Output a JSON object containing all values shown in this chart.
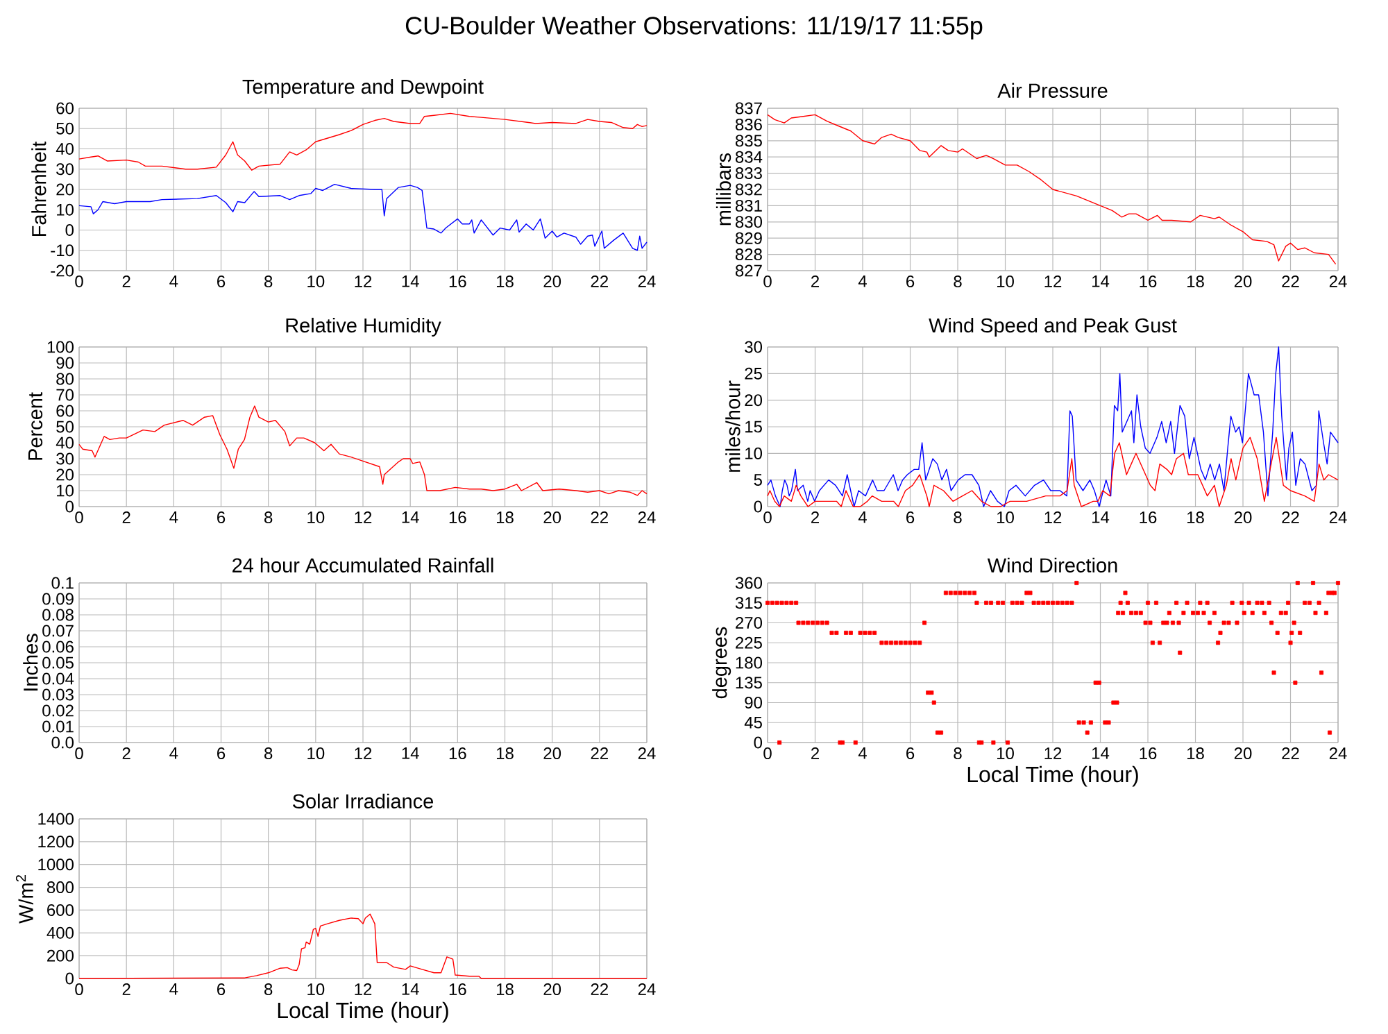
{
  "chart_data": [
    {
      "type": "other",
      "title": "CU-Boulder Weather Observations: 11/19/17 11:55p"
    },
    {
      "type": "line",
      "title": "Temperature and Dewpoint",
      "ylabel": "Fahrenheit",
      "xlim": [
        0,
        24
      ],
      "ylim": [
        -20,
        60
      ],
      "xticks": [
        0,
        2,
        4,
        6,
        8,
        10,
        12,
        14,
        16,
        18,
        20,
        22,
        24
      ],
      "yticks": [
        -20,
        -10,
        0,
        10,
        20,
        30,
        40,
        50,
        60
      ],
      "grid": true,
      "series": [
        {
          "color": "#ff0000",
          "x": [
            0,
            0.5,
            0.8,
            1.2,
            2,
            2.5,
            2.8,
            3.5,
            4.5,
            5,
            5.8,
            6.2,
            6.5,
            6.7,
            7,
            7.3,
            7.6,
            8.5,
            8.9,
            9.2,
            9.6,
            10,
            11,
            11.5,
            12,
            12.5,
            12.9,
            13.3,
            14,
            14.4,
            14.6,
            15,
            15.7,
            16.5,
            17,
            18,
            19,
            19.3,
            20,
            21,
            21.5,
            22,
            22.5,
            23,
            23.4,
            23.6,
            23.8,
            24
          ],
          "values": [
            35,
            36,
            36.5,
            34,
            34.5,
            33.5,
            31.5,
            31.5,
            30,
            30,
            31,
            37,
            43.5,
            37,
            34,
            29.5,
            31.5,
            32.5,
            38.5,
            37,
            39.5,
            43.5,
            47,
            49,
            52,
            54,
            55,
            53.5,
            52.5,
            52.5,
            56,
            56.5,
            57.5,
            56,
            55.5,
            54.5,
            53,
            52.5,
            53,
            52.5,
            54.5,
            53.5,
            53,
            50.5,
            50,
            52,
            51,
            51.5
          ]
        },
        {
          "color": "#0000ff",
          "x": [
            0,
            0.5,
            0.6,
            0.8,
            1,
            1.5,
            2,
            3,
            3.5,
            5,
            5.8,
            6.2,
            6.5,
            6.7,
            7,
            7.4,
            7.6,
            8.5,
            8.9,
            9.3,
            9.8,
            10,
            10.3,
            10.8,
            11.5,
            12.5,
            12.8,
            12.9,
            13,
            13.5,
            14,
            14.3,
            14.5,
            14.7,
            15,
            15.3,
            15.5,
            16,
            16.2,
            16.5,
            16.6,
            16.7,
            17,
            17.5,
            17.8,
            18.2,
            18.5,
            18.6,
            18.9,
            19.2,
            19.5,
            19.7,
            20,
            20.2,
            20.5,
            21,
            21.2,
            21.5,
            21.7,
            21.8,
            22.1,
            22.2,
            22.6,
            23,
            23.4,
            23.6,
            23.7,
            23.8,
            24
          ],
          "values": [
            12,
            11.5,
            8,
            10,
            14,
            13,
            14,
            14,
            15,
            15.5,
            17,
            13.5,
            9,
            14,
            13.5,
            19,
            16.5,
            17,
            15,
            17,
            18,
            20.5,
            19.5,
            22.5,
            20.5,
            20,
            20,
            7,
            15.5,
            21,
            22,
            21,
            19.5,
            1,
            0.5,
            -1.5,
            1,
            5.5,
            3,
            3,
            5,
            -1.5,
            5,
            -2.5,
            1,
            0,
            5,
            -1,
            3,
            0,
            5.5,
            -4,
            -0.5,
            -3.5,
            -1.5,
            -3.5,
            -7,
            -3,
            -2.5,
            -8,
            -0.5,
            -9,
            -5,
            -1.5,
            -9,
            -10,
            -3,
            -9,
            -6
          ]
        }
      ]
    },
    {
      "type": "line",
      "title": "Air Pressure",
      "ylabel": "millibars",
      "xlim": [
        0,
        24
      ],
      "ylim": [
        827,
        837
      ],
      "xticks": [
        0,
        2,
        4,
        6,
        8,
        10,
        12,
        14,
        16,
        18,
        20,
        22,
        24
      ],
      "yticks": [
        827,
        828,
        829,
        830,
        831,
        832,
        833,
        834,
        835,
        836,
        837
      ],
      "grid": true,
      "color": "#ff0000",
      "x": [
        0,
        0.3,
        0.7,
        1,
        1.5,
        2,
        2.5,
        3,
        3.5,
        4,
        4.5,
        4.8,
        5.2,
        5.5,
        6,
        6.4,
        6.7,
        6.8,
        7.3,
        7.6,
        8,
        8.2,
        8.5,
        8.8,
        9.2,
        9.5,
        10,
        10.5,
        11,
        11.5,
        12,
        12.5,
        13,
        13.5,
        14,
        14.5,
        14.9,
        15.2,
        15.5,
        16,
        16.4,
        16.6,
        17,
        17.8,
        18.2,
        18.8,
        19,
        19.5,
        20,
        20.4,
        21,
        21.3,
        21.5,
        21.8,
        22,
        22.3,
        22.6,
        23,
        23.6,
        23.9
      ],
      "values": [
        836.6,
        836.3,
        836.1,
        836.4,
        836.5,
        836.6,
        836.2,
        835.9,
        835.6,
        835,
        834.8,
        835.2,
        835.4,
        835.2,
        835,
        834.4,
        834.3,
        834,
        834.7,
        834.4,
        834.3,
        834.5,
        834.2,
        833.9,
        834.1,
        833.9,
        833.5,
        833.5,
        833.1,
        832.6,
        832,
        831.8,
        831.6,
        831.3,
        831,
        830.7,
        830.3,
        830.5,
        830.5,
        830.1,
        830.4,
        830.1,
        830.1,
        830,
        830.4,
        830.2,
        830.3,
        829.8,
        829.4,
        828.9,
        828.8,
        828.6,
        827.6,
        828.5,
        828.7,
        828.3,
        828.4,
        828.1,
        828,
        827.4
      ]
    },
    {
      "type": "line",
      "title": "Relative Humidity",
      "ylabel": "Percent",
      "xlim": [
        0,
        24
      ],
      "ylim": [
        0,
        100
      ],
      "xticks": [
        0,
        2,
        4,
        6,
        8,
        10,
        12,
        14,
        16,
        18,
        20,
        22,
        24
      ],
      "yticks": [
        0,
        10,
        20,
        30,
        40,
        50,
        60,
        70,
        80,
        90,
        100
      ],
      "grid": true,
      "color": "#ff0000",
      "x": [
        0,
        0.15,
        0.55,
        0.67,
        1.06,
        1.3,
        1.7,
        2,
        2.7,
        3.2,
        3.6,
        4.4,
        4.8,
        5.3,
        5.65,
        5.95,
        6.25,
        6.54,
        6.73,
        6.99,
        7.22,
        7.42,
        7.6,
        8,
        8.3,
        8.7,
        8.9,
        9.2,
        9.5,
        9.96,
        10.35,
        10.65,
        11,
        11.5,
        12.1,
        12.7,
        12.84,
        12.9,
        13.5,
        13.7,
        14,
        14.1,
        14.4,
        14.6,
        14.7,
        15.25,
        15.9,
        16.5,
        17,
        17.5,
        18,
        18.5,
        18.7,
        19.35,
        19.6,
        20.3,
        21,
        21.5,
        22,
        22.4,
        22.8,
        23.3,
        23.6,
        23.8,
        24
      ],
      "values": [
        39,
        36,
        35,
        31,
        44,
        42,
        43,
        43,
        48,
        47,
        51,
        54,
        51,
        56,
        57,
        45,
        36,
        24,
        36,
        42,
        56,
        63,
        56,
        53,
        54,
        47,
        38,
        43,
        43,
        40,
        35,
        39,
        33,
        31,
        28,
        25,
        14,
        20,
        28,
        30,
        30,
        27,
        28,
        20,
        10,
        10,
        12,
        11,
        11,
        10,
        11,
        14,
        10,
        15,
        10,
        11,
        10,
        9,
        10,
        8,
        10,
        9,
        7,
        10,
        8
      ]
    },
    {
      "type": "line",
      "title": "Wind Speed and Peak Gust",
      "ylabel": "miles/hour",
      "xlim": [
        0,
        24
      ],
      "ylim": [
        0,
        30
      ],
      "xticks": [
        0,
        2,
        4,
        6,
        8,
        10,
        12,
        14,
        16,
        18,
        20,
        22,
        24
      ],
      "yticks": [
        0,
        5,
        10,
        15,
        20,
        25,
        30
      ],
      "grid": true,
      "series": [
        {
          "color": "#0000ff",
          "x": [
            0,
            0.14,
            0.33,
            0.53,
            0.62,
            0.72,
            0.82,
            0.91,
            1.01,
            1.17,
            1.26,
            1.5,
            1.69,
            1.79,
            1.98,
            2.18,
            2.57,
            2.86,
            3.15,
            3.35,
            3.64,
            3.83,
            4.12,
            4.42,
            4.61,
            4.9,
            5.29,
            5.49,
            5.68,
            5.88,
            6.17,
            6.36,
            6.5,
            6.65,
            6.95,
            7.14,
            7.33,
            7.53,
            7.72,
            8.02,
            8.31,
            8.6,
            8.89,
            9.09,
            9.38,
            9.67,
            9.96,
            10.16,
            10.45,
            10.84,
            11.23,
            11.61,
            11.91,
            12.3,
            12.59,
            12.72,
            12.82,
            12.98,
            13.27,
            13.56,
            13.75,
            13.95,
            14.24,
            14.44,
            14.59,
            14.73,
            14.82,
            14.92,
            15.31,
            15.41,
            15.54,
            15.7,
            15.89,
            16.09,
            16.38,
            16.58,
            16.77,
            16.96,
            17.12,
            17.35,
            17.55,
            17.74,
            17.94,
            18.23,
            18.42,
            18.62,
            18.81,
            19.01,
            19.2,
            19.36,
            19.49,
            19.69,
            19.84,
            19.98,
            20.23,
            20.47,
            20.66,
            20.86,
            21.05,
            21.25,
            21.38,
            21.5,
            21.63,
            21.83,
            21.93,
            22.08,
            22.22,
            22.41,
            22.61,
            22.9,
            23.09,
            23.19,
            23.39,
            23.54,
            23.68,
            24
          ],
          "values": [
            4,
            5,
            2,
            0,
            3,
            5,
            4,
            2,
            3,
            7,
            3,
            4,
            1,
            3,
            1,
            3,
            5,
            4,
            2,
            6,
            0,
            3,
            2,
            5,
            3,
            3,
            6,
            3,
            5,
            6,
            7,
            7,
            12,
            5,
            9,
            8,
            5,
            7,
            3,
            5,
            6,
            6,
            4,
            0,
            3,
            1,
            0,
            3,
            4,
            2,
            4,
            5,
            3,
            3,
            2,
            18,
            17,
            5,
            3,
            5,
            3,
            0,
            5,
            2,
            19,
            18,
            25,
            14,
            18,
            12,
            21,
            15,
            11,
            10,
            13,
            16,
            12,
            16,
            10,
            19,
            17,
            9,
            13,
            7,
            5,
            8,
            5,
            8,
            3,
            11,
            17,
            14,
            15,
            12,
            25,
            21,
            21,
            14,
            2,
            14,
            25,
            30,
            17,
            5,
            11,
            14,
            4,
            9,
            8,
            3,
            4,
            18,
            12,
            8,
            14,
            12
          ]
        },
        {
          "color": "#ff0000",
          "x": [
            0,
            0.1,
            0.3,
            0.5,
            0.7,
            1,
            1.2,
            1.4,
            1.7,
            2,
            2.4,
            2.9,
            3.1,
            3.3,
            3.6,
            3.9,
            4.2,
            4.4,
            4.8,
            5.3,
            5.5,
            5.8,
            6.1,
            6.4,
            6.7,
            6.8,
            7,
            7.4,
            7.8,
            8.2,
            8.6,
            9,
            9.4,
            9.8,
            10.2,
            10.9,
            11.7,
            12.3,
            12.6,
            12.8,
            12.9,
            13.2,
            13.7,
            13.9,
            14.1,
            14.4,
            14.6,
            14.8,
            14.9,
            15.1,
            15.3,
            15.5,
            15.8,
            16.1,
            16.3,
            16.5,
            16.8,
            17,
            17.2,
            17.5,
            17.7,
            18.1,
            18.5,
            18.8,
            19,
            19.3,
            19.5,
            19.7,
            20,
            20.3,
            20.6,
            20.9,
            21.1,
            21.4,
            21.7,
            22,
            22.6,
            23,
            23.2,
            23.4,
            23.6,
            24
          ],
          "values": [
            2,
            3,
            1,
            0,
            2,
            1,
            4,
            2,
            0,
            1,
            1,
            1,
            0,
            3,
            0,
            0,
            1,
            2,
            1,
            1,
            0,
            3,
            4,
            6,
            2,
            0,
            4,
            3,
            1,
            2,
            3,
            1,
            0,
            0,
            1,
            1,
            2,
            2,
            3,
            9,
            4,
            0,
            1,
            1,
            3,
            2,
            10,
            12,
            10,
            6,
            8,
            10,
            7,
            4,
            3,
            8,
            7,
            6,
            9,
            10,
            6,
            6,
            2,
            4,
            0,
            4,
            9,
            5,
            11,
            13,
            9,
            1,
            6,
            13,
            4,
            3,
            2,
            1,
            8,
            5,
            6,
            5
          ]
        }
      ]
    },
    {
      "type": "line",
      "title": "24 hour Accumulated Rainfall",
      "ylabel": "Inches",
      "xlim": [
        0,
        24
      ],
      "ylim": [
        0,
        0.1
      ],
      "xticks": [
        0,
        2,
        4,
        6,
        8,
        10,
        12,
        14,
        16,
        18,
        20,
        22,
        24
      ],
      "yticks": [
        {
          "value": 0,
          "label": "0.0"
        },
        0.01,
        0.02,
        0.03,
        0.04,
        0.05,
        0.06,
        0.07,
        0.08,
        0.09,
        0.1
      ],
      "grid": true
    },
    {
      "type": "scatter",
      "title": "Wind Direction",
      "ylabel": "degrees",
      "xlabel": "Local Time (hour)",
      "xlim": [
        0,
        24
      ],
      "ylim": [
        0,
        360
      ],
      "xticks": [
        0,
        2,
        4,
        6,
        8,
        10,
        12,
        14,
        16,
        18,
        20,
        22,
        24
      ],
      "yticks": [
        0,
        45,
        90,
        135,
        180,
        225,
        270,
        315,
        360
      ],
      "grid": true,
      "marker": "square",
      "color": "#ff0000",
      "x": [
        0,
        0.2,
        0.4,
        0.5,
        0.6,
        0.8,
        1,
        1.2,
        1.3,
        1.5,
        1.7,
        1.9,
        2.1,
        2.3,
        2.5,
        2.7,
        2.9,
        3.05,
        3.15,
        3.3,
        3.5,
        3.7,
        3.9,
        4.1,
        4.3,
        4.5,
        4.8,
        5,
        5.2,
        5.4,
        5.6,
        5.8,
        6,
        6.2,
        6.4,
        6.6,
        6.75,
        6.9,
        7,
        7.15,
        7.3,
        7.5,
        7.7,
        7.9,
        8.1,
        8.3,
        8.5,
        8.7,
        8.8,
        8.9,
        9,
        9.2,
        9.4,
        9.5,
        9.7,
        9.9,
        10.1,
        10.3,
        10.5,
        10.7,
        10.9,
        11.05,
        11.2,
        11.4,
        11.6,
        11.8,
        12,
        12.2,
        12.4,
        12.6,
        12.8,
        13,
        13.1,
        13.3,
        13.45,
        13.6,
        13.8,
        13.95,
        14.2,
        14.35,
        14.55,
        14.7,
        14.75,
        14.85,
        14.95,
        15.05,
        15.15,
        15.3,
        15.5,
        15.7,
        15.9,
        16,
        16.1,
        16.2,
        16.35,
        16.5,
        16.65,
        16.8,
        16.9,
        17.05,
        17.2,
        17.3,
        17.35,
        17.5,
        17.65,
        17.9,
        18.1,
        18.2,
        18.35,
        18.5,
        18.6,
        18.8,
        18.95,
        19.05,
        19.2,
        19.4,
        19.55,
        19.75,
        19.95,
        20.05,
        20.25,
        20.4,
        20.6,
        20.8,
        20.9,
        21.1,
        21.2,
        21.3,
        21.45,
        21.6,
        21.8,
        21.9,
        22,
        22.05,
        22.15,
        22.2,
        22.3,
        22.4,
        22.6,
        22.8,
        22.95,
        23.05,
        23.2,
        23.3,
        23.5,
        23.6,
        23.65,
        23.75,
        23.85,
        24
      ],
      "values": [
        315,
        315,
        315,
        0,
        315,
        315,
        315,
        315,
        270,
        270,
        270,
        270,
        270,
        270,
        270,
        247.5,
        247.5,
        0,
        0,
        247.5,
        247.5,
        0,
        247.5,
        247.5,
        247.5,
        247.5,
        225,
        225,
        225,
        225,
        225,
        225,
        225,
        225,
        225,
        270,
        112.5,
        112.5,
        90,
        22.5,
        22.5,
        337.5,
        337.5,
        337.5,
        337.5,
        337.5,
        337.5,
        337.5,
        315,
        0,
        0,
        315,
        315,
        0,
        315,
        315,
        0,
        315,
        315,
        315,
        337.5,
        337.5,
        315,
        315,
        315,
        315,
        315,
        315,
        315,
        315,
        315,
        360,
        45,
        45,
        22.5,
        45,
        135,
        135,
        45,
        45,
        90,
        90,
        292.5,
        315,
        292.5,
        337.5,
        315,
        292.5,
        292.5,
        292.5,
        270,
        315,
        270,
        225,
        315,
        225,
        270,
        270,
        292.5,
        270,
        315,
        270,
        202.5,
        292.5,
        315,
        292.5,
        292.5,
        315,
        292.5,
        315,
        270,
        292.5,
        225,
        247.5,
        270,
        270,
        315,
        270,
        315,
        292.5,
        315,
        292.5,
        315,
        315,
        292.5,
        315,
        270,
        157.5,
        247.5,
        292.5,
        292.5,
        315,
        225,
        247.5,
        270,
        135,
        360,
        247.5,
        315,
        315,
        360,
        292.5,
        315,
        157.5,
        292.5,
        337.5,
        22.5,
        337.5,
        337.5,
        360
      ]
    },
    {
      "type": "line",
      "title": "Solar Irradiance",
      "ylabel": "W/m$^{2}$",
      "xlabel": "Local Time (hour)",
      "xlim": [
        0,
        24
      ],
      "ylim": [
        0,
        1400
      ],
      "xticks": [
        0,
        2,
        4,
        6,
        8,
        10,
        12,
        14,
        16,
        18,
        20,
        22,
        24
      ],
      "yticks": [
        0,
        200,
        400,
        600,
        800,
        1000,
        1200,
        1400
      ],
      "grid": true,
      "color": "#ff0000",
      "x": [
        0,
        6.7,
        7,
        7.5,
        8,
        8.5,
        8.8,
        9,
        9.2,
        9.3,
        9.4,
        9.55,
        9.6,
        9.75,
        9.9,
        10,
        10.1,
        10.2,
        10.5,
        11,
        11.5,
        11.8,
        12,
        12.1,
        12.3,
        12.5,
        12.6,
        13,
        13.3,
        13.8,
        14,
        14.5,
        15,
        15.3,
        15.55,
        15.8,
        15.9,
        16.5,
        16.9,
        17,
        24
      ],
      "values": [
        0,
        5,
        5,
        25,
        50,
        90,
        95,
        75,
        70,
        120,
        260,
        270,
        320,
        300,
        430,
        440,
        370,
        460,
        480,
        510,
        530,
        525,
        480,
        530,
        565,
        480,
        140,
        140,
        100,
        80,
        110,
        80,
        50,
        50,
        190,
        170,
        30,
        20,
        20,
        0,
        0
      ]
    }
  ]
}
